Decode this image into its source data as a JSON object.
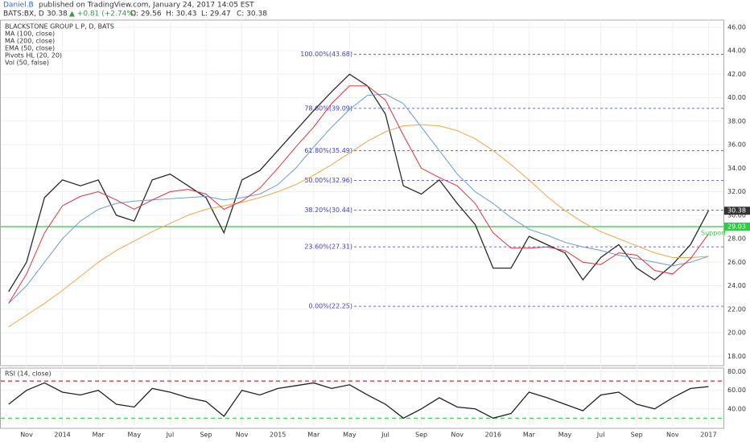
{
  "header": {
    "author": "Daniel.B",
    "published": "published on TradingView.com, January 24, 2017 14:05 EST",
    "symbol": "BATS:BX, D",
    "last": "30.38",
    "change": "▲ +0.81 (+2.74%)",
    "open": "O: 29.56",
    "high": "H: 30.43",
    "low": "L: 29.47",
    "close": "C: 30.38"
  },
  "chart_data": [
    {
      "type": "line",
      "categories": [
        null,
        "Nov",
        null,
        "2014",
        null,
        "Mar",
        null,
        "May",
        null,
        "Jul",
        null,
        "Sep",
        null,
        "Nov",
        null,
        "2015",
        null,
        "Mar",
        null,
        "May",
        null,
        "Jul",
        null,
        "Sep",
        null,
        "Nov",
        null,
        "2016",
        null,
        "Mar",
        null,
        "May",
        null,
        "Jul",
        null,
        "Sep",
        null,
        "Nov",
        null,
        "2017"
      ],
      "series": [
        {
          "name": "BLACKSTONE GROUP L P, D, BATS",
          "color": "#2a2a2a",
          "values": [
            23.5,
            26,
            31.5,
            33,
            32.5,
            33,
            30,
            29.5,
            33,
            33.5,
            32.5,
            31.5,
            28.5,
            33,
            33.8,
            35.5,
            37.2,
            38.9,
            40.5,
            42,
            41,
            38.6,
            32.5,
            31.8,
            33,
            31,
            29.2,
            25.5,
            25.5,
            28.2,
            27.5,
            26.8,
            24.5,
            26.4,
            27.5,
            25.5,
            24.5,
            25.8,
            27.5,
            30.38
          ]
        },
        {
          "name": "MA (100, close)",
          "color": "#6b9bd6",
          "values": [
            22.5,
            24,
            26,
            28,
            29.5,
            30.5,
            31,
            31.2,
            31.3,
            31.4,
            31.5,
            31.6,
            31.3,
            31.5,
            31.8,
            32.6,
            34,
            35.8,
            37.5,
            39,
            40.2,
            40.3,
            39.5,
            37.5,
            35.5,
            33.5,
            32,
            31,
            29.8,
            28.8,
            28.3,
            27.7,
            27.3,
            27,
            26.6,
            26.3,
            26,
            25.7,
            26,
            26.5
          ]
        },
        {
          "name": "MA (200, close)",
          "color": "#f2a44a",
          "values": [
            20.5,
            21.5,
            22.5,
            23.6,
            24.8,
            26,
            27,
            27.8,
            28.6,
            29.3,
            30,
            30.5,
            30.8,
            31.1,
            31.5,
            32,
            32.6,
            33.4,
            34.3,
            35.3,
            36.3,
            37.1,
            37.6,
            37.7,
            37.6,
            37.2,
            36.5,
            35.5,
            34.3,
            33,
            31.6,
            30.4,
            29.4,
            28.6,
            28,
            27.4,
            26.8,
            26.4,
            26.4,
            26.5
          ]
        },
        {
          "name": "EMA (50, close)",
          "color": "#e0323c",
          "values": [
            22.5,
            25,
            28.5,
            30.8,
            31.6,
            32,
            31.3,
            30.5,
            31.3,
            32,
            32.2,
            31.8,
            30.5,
            31.2,
            32.3,
            34,
            35.8,
            37.5,
            39.5,
            41,
            41,
            39.8,
            36.8,
            34,
            33.2,
            32.5,
            31,
            28.5,
            27.2,
            27.2,
            27.3,
            27,
            26,
            25.8,
            26.8,
            26.6,
            25.3,
            25,
            26.3,
            28.4
          ]
        }
      ],
      "indicators": [
        "Pivots HL (20, 20)",
        "Vol (50, false)"
      ],
      "ylim": [
        17.2,
        46.6
      ],
      "yticks": [
        {
          "value": 18,
          "label": "18.00"
        },
        {
          "value": 20,
          "label": "20.00"
        },
        {
          "value": 22,
          "label": "22.00"
        },
        {
          "value": 24,
          "label": "24.00"
        },
        {
          "value": 26,
          "label": "26.00"
        },
        {
          "value": 28,
          "label": "28.00"
        },
        {
          "value": 30,
          "label": "30.00"
        },
        {
          "value": 32,
          "label": "32.00"
        },
        {
          "value": 34,
          "label": "34.00"
        },
        {
          "value": 36,
          "label": "36.00"
        },
        {
          "value": 38,
          "label": "38.00"
        },
        {
          "value": 40,
          "label": "40.00"
        },
        {
          "value": 42,
          "label": "42.00"
        },
        {
          "value": 44,
          "label": "44.00"
        },
        {
          "value": 46,
          "label": "46.00"
        }
      ],
      "fib_color": "#3d3dc8",
      "fib": [
        {
          "value": 43.68,
          "label": "100.00%(43.68)"
        },
        {
          "value": 39.09,
          "label": "78.60%(39.09)"
        },
        {
          "value": 35.49,
          "label": "61.80%(35.49)"
        },
        {
          "value": 32.96,
          "label": "50.00%(32.96)"
        },
        {
          "value": 30.44,
          "label": "38.20%(30.44)"
        },
        {
          "value": 27.31,
          "label": "23.60%(27.31)"
        },
        {
          "value": 22.25,
          "label": "0.00%(22.25)"
        }
      ],
      "support": {
        "value": 29.03,
        "label": "Support",
        "color": "#2ecc40"
      },
      "grid": true
    },
    {
      "type": "line",
      "series": [
        {
          "name": "RSI (14, close)",
          "color": "#222",
          "values": [
            45,
            60,
            68,
            58,
            55,
            60,
            45,
            42,
            62,
            58,
            52,
            48,
            32,
            60,
            55,
            62,
            65,
            68,
            62,
            66,
            55,
            45,
            30,
            40,
            52,
            42,
            40,
            30,
            35,
            58,
            52,
            45,
            38,
            55,
            58,
            45,
            40,
            52,
            62,
            64
          ]
        }
      ],
      "ylim": [
        19,
        84
      ],
      "yticks": [
        {
          "value": 40,
          "label": "40.00"
        },
        {
          "value": 60,
          "label": "60.00"
        },
        {
          "value": 80,
          "label": "80.00"
        }
      ],
      "levels": [
        70,
        30
      ],
      "level_colors": [
        "#d9262e",
        "#2ecc40"
      ]
    }
  ]
}
